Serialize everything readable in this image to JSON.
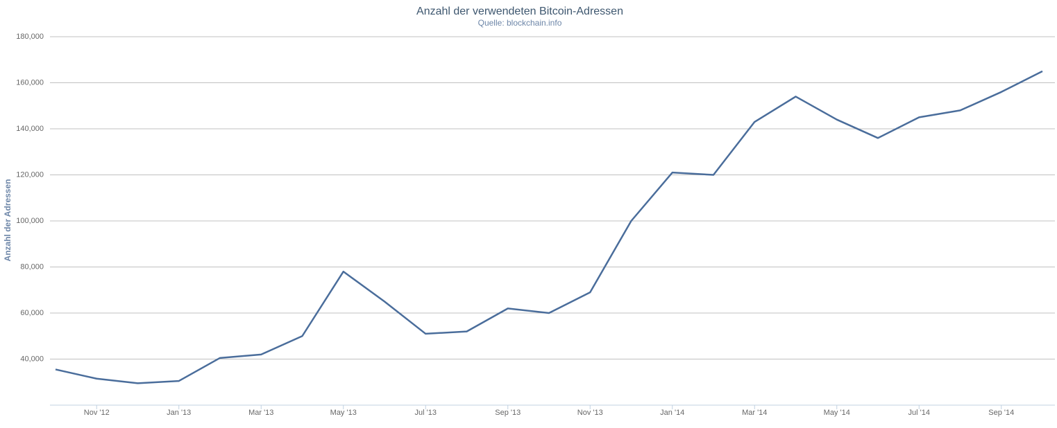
{
  "chart_data": {
    "type": "line",
    "title": "Anzahl der verwendeten Bitcoin-Adressen",
    "subtitle": "Quelle: blockchain.info",
    "y_label": "Anzahl der Adressen",
    "x": [
      "2012-10",
      "2012-11",
      "2012-12",
      "2013-01",
      "2013-02",
      "2013-03",
      "2013-04",
      "2013-05",
      "2013-06",
      "2013-07",
      "2013-08",
      "2013-09",
      "2013-10",
      "2013-11",
      "2013-12",
      "2014-01",
      "2014-02",
      "2014-03",
      "2014-04",
      "2014-05",
      "2014-06",
      "2014-07",
      "2014-08",
      "2014-09",
      "2014-10"
    ],
    "series": [
      {
        "name": "Anzahl der Adressen",
        "color": "#4a6d9b",
        "values": [
          35500,
          31500,
          29500,
          30500,
          40500,
          42000,
          50000,
          78000,
          65000,
          51000,
          52000,
          62000,
          60000,
          69000,
          100000,
          121000,
          120000,
          143000,
          154000,
          144000,
          136000,
          145000,
          148000,
          156000,
          165000
        ]
      }
    ],
    "xlim": [
      "2012-10",
      "2014-10"
    ],
    "xticks": [
      {
        "value": "2012-11",
        "label": "Nov '12"
      },
      {
        "value": "2013-01",
        "label": "Jan '13"
      },
      {
        "value": "2013-03",
        "label": "Mar '13"
      },
      {
        "value": "2013-05",
        "label": "May '13"
      },
      {
        "value": "2013-07",
        "label": "Jul '13"
      },
      {
        "value": "2013-09",
        "label": "Sep '13"
      },
      {
        "value": "2013-11",
        "label": "Nov '13"
      },
      {
        "value": "2014-01",
        "label": "Jan '14"
      },
      {
        "value": "2014-03",
        "label": "Mar '14"
      },
      {
        "value": "2014-05",
        "label": "May '14"
      },
      {
        "value": "2014-07",
        "label": "Jul '14"
      },
      {
        "value": "2014-09",
        "label": "Sep '14"
      }
    ],
    "ylim": [
      20000,
      180000
    ],
    "yticks": [
      {
        "value": 40000,
        "label": "40,000"
      },
      {
        "value": 60000,
        "label": "60,000"
      },
      {
        "value": 80000,
        "label": "80,000"
      },
      {
        "value": 100000,
        "label": "100,000"
      },
      {
        "value": 120000,
        "label": "120,000"
      },
      {
        "value": 140000,
        "label": "140,000"
      },
      {
        "value": 160000,
        "label": "160,000"
      },
      {
        "value": 180000,
        "label": "180,000"
      }
    ],
    "grid": true
  }
}
